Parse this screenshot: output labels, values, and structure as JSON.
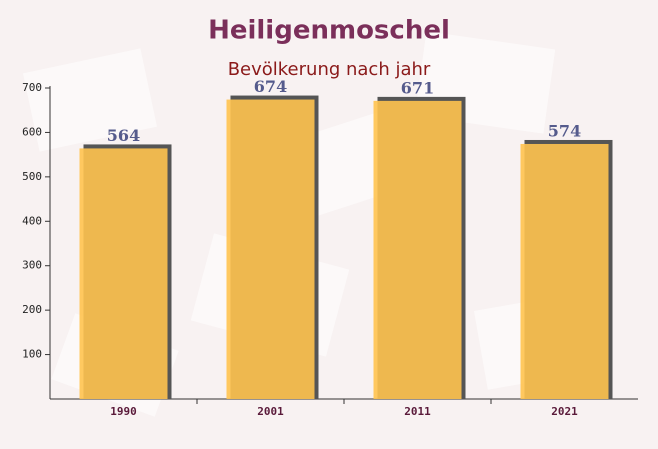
{
  "chart_data": {
    "type": "bar",
    "title": "Heiligenmoschel",
    "subtitle": "Bevölkerung nach jahr",
    "categories": [
      "1990",
      "2001",
      "2011",
      "2021"
    ],
    "values": [
      564,
      674,
      671,
      574
    ],
    "color": "#ffc34f",
    "ylim": [
      0,
      700
    ],
    "yticks": [
      100,
      200,
      300,
      400,
      500,
      600,
      700
    ]
  }
}
